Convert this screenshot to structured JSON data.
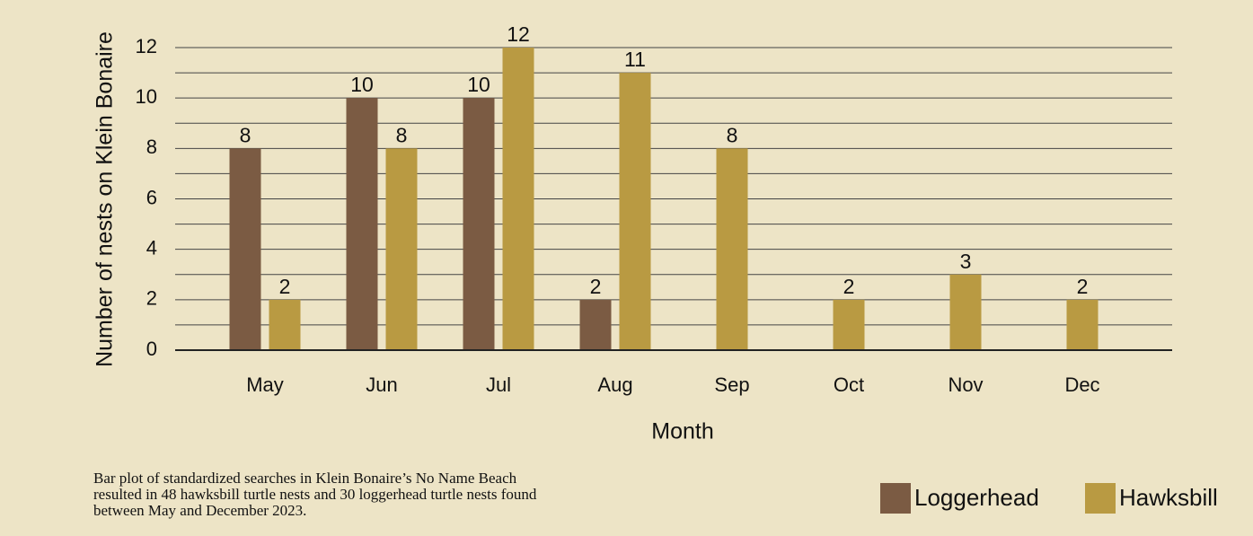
{
  "chart_data": {
    "type": "bar",
    "categories": [
      "May",
      "Jun",
      "Jul",
      "Aug",
      "Sep",
      "Oct",
      "Nov",
      "Dec"
    ],
    "series": [
      {
        "name": "Loggerhead",
        "color": "#7b5b43",
        "values": [
          8,
          10,
          10,
          2,
          null,
          null,
          null,
          null
        ]
      },
      {
        "name": "Hawksbill",
        "color": "#b99a42",
        "values": [
          2,
          8,
          12,
          11,
          8,
          2,
          3,
          2
        ]
      }
    ],
    "x_label": "Month",
    "y_label": "Number of nests on Klein Bonaire",
    "ylim": [
      0,
      12
    ],
    "yticks": [
      0,
      2,
      4,
      6,
      8,
      10,
      12
    ],
    "minor_yticks": [
      1,
      3,
      5,
      7,
      9,
      11
    ],
    "grid": true,
    "caption": [
      "Bar plot of standardized searches in Klein Bonaire’s No Name Beach",
      "resulted in 48 hawksbill turtle nests and 30 loggerhead turtle nests found",
      "between May and December 2023."
    ]
  }
}
